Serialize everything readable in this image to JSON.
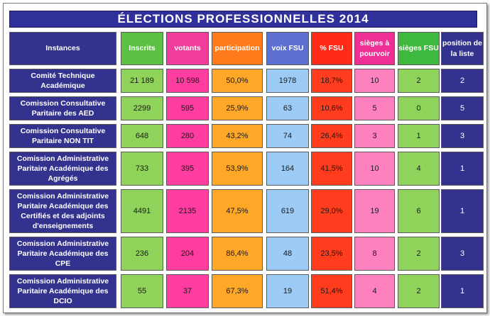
{
  "title": "ÉLECTIONS   PROFESSIONNELLES   2014",
  "headers": {
    "instances": "Instances",
    "inscrits": "Inscrits",
    "votants": "votants",
    "participation": "participation",
    "voix_fsu": "voix FSU",
    "pct_fsu": "% FSU",
    "sieges_pourvoir": "sièges à pourvoir",
    "sieges_fsu": "sièges FSU",
    "position": "position de la liste"
  },
  "rows": [
    {
      "instance": "Comité Technique Académique",
      "inscrits": "21 189",
      "votants": "10 598",
      "participation": "50,0%",
      "voix_fsu": "1978",
      "pct_fsu": "18,7%",
      "sieges_pourvoir": "10",
      "sieges_fsu": "2",
      "position": "2"
    },
    {
      "instance": "Comission Consultative Paritaire des AED",
      "inscrits": "2299",
      "votants": "595",
      "participation": "25,9%",
      "voix_fsu": "63",
      "pct_fsu": "10,6%",
      "sieges_pourvoir": "5",
      "sieges_fsu": "0",
      "position": "5"
    },
    {
      "instance": "Comission Consultative Paritaire NON TIT",
      "inscrits": "648",
      "votants": "280",
      "participation": "43,2%",
      "voix_fsu": "74",
      "pct_fsu": "26,4%",
      "sieges_pourvoir": "3",
      "sieges_fsu": "1",
      "position": "3"
    },
    {
      "instance": "Comission Administrative Paritaire Académique des Agrégés",
      "inscrits": "733",
      "votants": "395",
      "participation": "53,9%",
      "voix_fsu": "164",
      "pct_fsu": "41,5%",
      "sieges_pourvoir": "10",
      "sieges_fsu": "4",
      "position": "1"
    },
    {
      "instance": "Comission Administrative Paritaire Académique des Certifiés et des adjoints d'enseignements",
      "inscrits": "4491",
      "votants": "2135",
      "participation": "47,5%",
      "voix_fsu": "619",
      "pct_fsu": "29,0%",
      "sieges_pourvoir": "19",
      "sieges_fsu": "6",
      "position": "1"
    },
    {
      "instance": "Comission Administrative Paritaire Académique des CPE",
      "inscrits": "236",
      "votants": "204",
      "participation": "86,4%",
      "voix_fsu": "48",
      "pct_fsu": "23,5%",
      "sieges_pourvoir": "8",
      "sieges_fsu": "2",
      "position": "3"
    },
    {
      "instance": "Comission Administrative Paritaire Académique des DCIO",
      "inscrits": "55",
      "votants": "37",
      "participation": "67,3%",
      "voix_fsu": "19",
      "pct_fsu": "51,4%",
      "sieges_pourvoir": "4",
      "sieges_fsu": "2",
      "position": "1"
    }
  ],
  "colors": {
    "navy": "#33338f",
    "green": "#8fd35a",
    "pink": "#ff3ca0",
    "orange": "#ffa726",
    "light_blue": "#9ccbf5",
    "red": "#ff3c1e",
    "rose": "#ff80bf"
  }
}
